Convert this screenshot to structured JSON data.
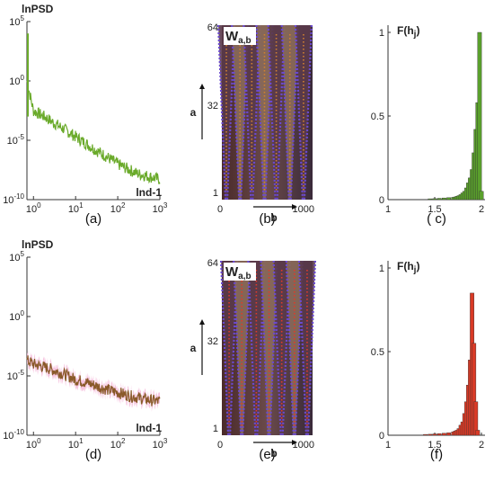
{
  "figure": {
    "rows": [
      {
        "psd": {
          "ylabel": "lnPSD",
          "xlabel": "lnd-1",
          "line_color": "#6aaa2a",
          "shade_color": "#ffffff",
          "xticks": [
            "1",
            "10",
            "100",
            "1000"
          ],
          "yticks": [
            {
              "label": "10",
              "exp": "5"
            },
            {
              "label": "10",
              "exp": "0"
            },
            {
              "label": "10",
              "exp": "-5"
            },
            {
              "label": "10",
              "exp": "-10"
            }
          ],
          "caption": "(a)"
        },
        "wavelet": {
          "title": "W",
          "title_sub": "a,b",
          "a_label": "a",
          "b_label": "b",
          "yticks": [
            "64",
            "32",
            "1"
          ],
          "xticks": [
            "0",
            "1000"
          ],
          "caption": "(b)",
          "mark_color": "#d08030"
        },
        "hist": {
          "title": "F(h",
          "title_sub": "j",
          "title_close": ")",
          "yticks": [
            "1",
            "0.5",
            "0"
          ],
          "xticks": [
            "1",
            "1.5",
            "2"
          ],
          "bar_color": "#5aa02c",
          "caption": "( c)"
        }
      },
      {
        "psd": {
          "ylabel": "lnPSD",
          "xlabel": "lnd-1",
          "line_color": "#8a5a2a",
          "shade_color": "#f4b8d8",
          "xticks": [
            "1",
            "10",
            "100",
            "1000"
          ],
          "yticks": [
            {
              "label": "10",
              "exp": "5"
            },
            {
              "label": "10",
              "exp": "0"
            },
            {
              "label": "10",
              "exp": "-5"
            },
            {
              "label": "10",
              "exp": "-10"
            }
          ],
          "caption": "(d)"
        },
        "wavelet": {
          "title": "W",
          "title_sub": "a,b",
          "a_label": "a",
          "b_label": "b",
          "yticks": [
            "64",
            "32",
            "1"
          ],
          "xticks": [
            "0",
            "1000"
          ],
          "caption": "(e)",
          "mark_color": "#e03a2a"
        },
        "hist": {
          "title": "F(h",
          "title_sub": "j",
          "title_close": ")",
          "yticks": [
            "1",
            "0.5",
            "0"
          ],
          "xticks": [
            "1",
            "1.5",
            "2"
          ],
          "bar_color": "#d93a26",
          "caption": "(f)"
        }
      }
    ]
  },
  "chart_data": [
    {
      "type": "line",
      "panel": "a",
      "xscale": "log",
      "yscale": "log",
      "xlim": [
        0.7,
        1000
      ],
      "ylim": [
        1e-10,
        100000.0
      ],
      "x": [
        0.7,
        1,
        2,
        3,
        5,
        10,
        20,
        30,
        50,
        100,
        200,
        300,
        500,
        1000
      ],
      "y": [
        1,
        0.003,
        0.0008,
        0.0003,
        0.0001,
        2e-05,
        4e-06,
        1.5e-06,
        5e-07,
        1e-07,
        3e-08,
        1.5e-08,
        1e-08,
        5e-09
      ]
    },
    {
      "type": "heatmap",
      "panel": "b",
      "xlim": [
        0,
        1000
      ],
      "ylim": [
        1,
        64
      ]
    },
    {
      "type": "bar",
      "panel": "c",
      "xlim": [
        1,
        2
      ],
      "ylim": [
        0,
        1
      ],
      "x": [
        1.45,
        1.5,
        1.55,
        1.6,
        1.65,
        1.7,
        1.72,
        1.74,
        1.76,
        1.78,
        1.8,
        1.82,
        1.84,
        1.86,
        1.88,
        1.9,
        1.92,
        1.94,
        1.96,
        1.98,
        2.0
      ],
      "values": [
        0.005,
        0.006,
        0.008,
        0.01,
        0.012,
        0.014,
        0.016,
        0.02,
        0.024,
        0.03,
        0.04,
        0.05,
        0.07,
        0.1,
        0.13,
        0.18,
        0.28,
        0.42,
        0.58,
        1.0,
        0.05
      ]
    },
    {
      "type": "line",
      "panel": "d",
      "xscale": "log",
      "yscale": "log",
      "xlim": [
        0.7,
        1000
      ],
      "ylim": [
        1e-10,
        100000.0
      ],
      "x": [
        0.7,
        1,
        2,
        3,
        5,
        10,
        20,
        30,
        50,
        100,
        200,
        300,
        500,
        1000
      ],
      "y": [
        0.0002,
        0.0001,
        5e-05,
        3e-05,
        1.5e-05,
        5e-06,
        2.5e-06,
        1.5e-06,
        8e-07,
        4e-07,
        2e-07,
        1.5e-07,
        1e-07,
        7e-08
      ]
    },
    {
      "type": "heatmap",
      "panel": "e",
      "xlim": [
        0,
        1000
      ],
      "ylim": [
        1,
        64
      ]
    },
    {
      "type": "bar",
      "panel": "f",
      "xlim": [
        1,
        2
      ],
      "ylim": [
        0,
        1
      ],
      "x": [
        1.4,
        1.45,
        1.5,
        1.55,
        1.6,
        1.65,
        1.7,
        1.72,
        1.74,
        1.76,
        1.78,
        1.8,
        1.82,
        1.84,
        1.86,
        1.88,
        1.9,
        1.92,
        1.94,
        1.96
      ],
      "values": [
        0.005,
        0.006,
        0.008,
        0.01,
        0.012,
        0.015,
        0.02,
        0.025,
        0.03,
        0.04,
        0.06,
        0.08,
        0.13,
        0.2,
        0.3,
        0.45,
        0.85,
        0.55,
        0.2,
        0.03
      ]
    }
  ]
}
